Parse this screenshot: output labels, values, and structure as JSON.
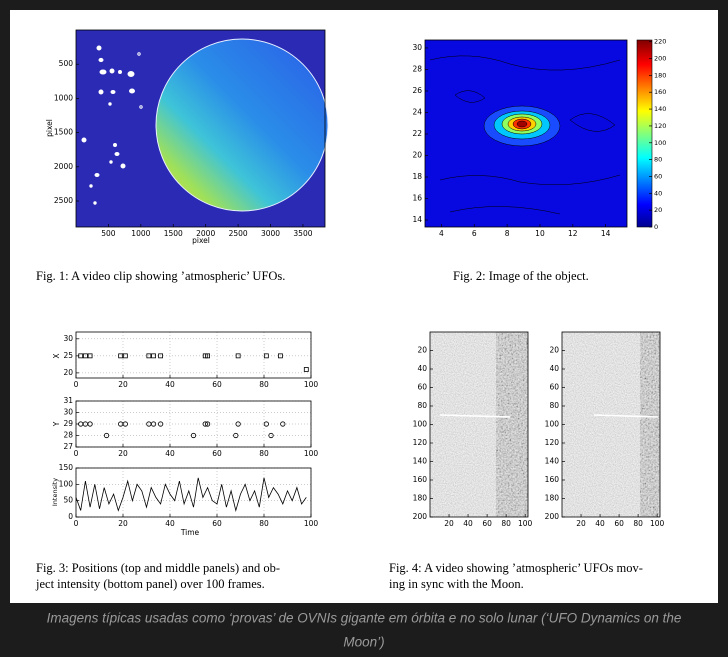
{
  "figures": [
    {
      "axes": {
        "xlim": [
          0,
          3840
        ],
        "ylim": [
          0,
          2880
        ],
        "y_inverted": true,
        "xticks": [
          500,
          1000,
          1500,
          2000,
          2500,
          3000,
          3500
        ],
        "yticks": [
          500,
          1000,
          1500,
          2000,
          2500
        ],
        "xlabel": "pixel",
        "ylabel": "pixel"
      },
      "caption": [
        "Fig. 1: A video clip showing ’atmospheric’ UFOs."
      ]
    },
    {
      "axes": {
        "xlim": [
          3,
          15.3
        ],
        "ylim": [
          13.35,
          30.74
        ],
        "y_inverted": false,
        "xticks": [
          4,
          6,
          8,
          10,
          12,
          14
        ],
        "yticks": [
          14,
          16,
          18,
          20,
          22,
          24,
          26,
          28,
          30
        ]
      },
      "colorbar": {
        "lim": [
          0,
          222
        ],
        "ticks": [
          0,
          20,
          40,
          60,
          80,
          100,
          120,
          140,
          160,
          180,
          200,
          220
        ]
      },
      "caption": [
        "Fig. 2: Image of the object."
      ]
    },
    {
      "panels": [
        {
          "type": "scatter",
          "marker": "square",
          "ylabel": "X",
          "grid": true,
          "xlim": [
            0,
            100
          ],
          "ylim": [
            18.5,
            32
          ],
          "xticks": [
            0,
            20,
            40,
            60,
            80,
            100
          ],
          "yticks": [
            20,
            25,
            30
          ],
          "x": [
            2,
            4,
            6,
            19,
            21,
            31,
            33,
            36,
            55,
            56,
            69,
            81,
            87,
            98
          ],
          "values": [
            25,
            25,
            25,
            25,
            25,
            25,
            25,
            25,
            25,
            25,
            25,
            25,
            25,
            21
          ]
        },
        {
          "type": "scatter",
          "marker": "circle",
          "ylabel": "Y",
          "grid": true,
          "xlim": [
            0,
            100
          ],
          "ylim": [
            27,
            31
          ],
          "xticks": [
            0,
            20,
            40,
            60,
            80,
            100
          ],
          "yticks": [
            27,
            28,
            29,
            30,
            31
          ],
          "x": [
            2,
            4,
            6,
            13,
            19,
            21,
            31,
            33,
            36,
            50,
            55,
            56,
            68,
            69,
            81,
            83,
            88
          ],
          "values": [
            29,
            29,
            29,
            28,
            29,
            29,
            29,
            29,
            29,
            28,
            29,
            29,
            28,
            29,
            29,
            28,
            29
          ]
        },
        {
          "type": "line",
          "ylabel": "Intensity",
          "xlabel": "Time",
          "grid": true,
          "xlim": [
            0,
            100
          ],
          "ylim": [
            0,
            150
          ],
          "xticks": [
            0,
            20,
            40,
            60,
            80,
            100
          ],
          "yticks": [
            0,
            50,
            100,
            150
          ],
          "x": [
            0,
            2,
            4,
            6,
            8,
            10,
            12,
            14,
            16,
            18,
            20,
            22,
            24,
            26,
            28,
            30,
            32,
            34,
            36,
            38,
            40,
            42,
            44,
            46,
            48,
            50,
            52,
            54,
            56,
            58,
            60,
            62,
            64,
            66,
            68,
            70,
            72,
            74,
            76,
            78,
            80,
            82,
            84,
            86,
            88,
            90,
            92,
            94,
            96,
            98
          ],
          "values": [
            60,
            20,
            110,
            30,
            100,
            25,
            90,
            40,
            70,
            20,
            60,
            110,
            50,
            100,
            80,
            30,
            90,
            60,
            40,
            100,
            70,
            50,
            110,
            40,
            80,
            30,
            120,
            60,
            90,
            50,
            40,
            100,
            30,
            80,
            20,
            70,
            100,
            50,
            80,
            30,
            120,
            60,
            90,
            70,
            40,
            80,
            50,
            90,
            40,
            60
          ]
        }
      ],
      "caption": [
        "Fig. 3: Positions (top and middle panels) and ob-",
        "ject intensity (bottom panel) over 100 frames."
      ]
    },
    {
      "frames": [
        {
          "xlim": [
            0,
            103
          ],
          "ylim": [
            0,
            200
          ],
          "y_inverted": true,
          "xticks": [
            20,
            40,
            60,
            80,
            100
          ],
          "yticks": [
            20,
            40,
            60,
            80,
            100,
            120,
            140,
            160,
            180,
            200
          ]
        },
        {
          "xlim": [
            0,
            103
          ],
          "ylim": [
            0,
            200
          ],
          "y_inverted": true,
          "xticks": [
            20,
            40,
            60,
            80,
            100
          ],
          "yticks": [
            20,
            40,
            60,
            80,
            100,
            120,
            140,
            160,
            180,
            200
          ]
        }
      ],
      "caption": [
        "Fig. 4: A video showing ’atmospheric’ UFOs mov-",
        "ing in sync with the Moon."
      ]
    }
  ],
  "caption": [
    "Imagens típicas usadas como ‘provas’ de OVNIs gigante em órbita e no solo lunar (‘UFO Dynamics on the",
    "Moon’)"
  ]
}
